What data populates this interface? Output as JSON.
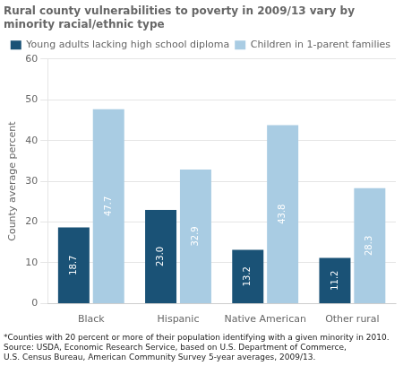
{
  "chart_data": {
    "type": "bar",
    "title": "Rural county vulnerabilities to poverty in 2009/13 vary by minority racial/ethnic type",
    "ylabel": "County average percent",
    "categories": [
      "Black",
      "Hispanic",
      "Native American",
      "Other rural"
    ],
    "series": [
      {
        "name": "Young adults lacking high school diploma",
        "color": "#1a5276",
        "values": [
          18.7,
          23.0,
          13.2,
          11.2
        ],
        "value_labels": [
          "18.7",
          "23.0",
          "13.2",
          "11.2"
        ]
      },
      {
        "name": "Children in 1-parent families",
        "color": "#a9cce3",
        "values": [
          47.7,
          32.9,
          43.8,
          28.3
        ],
        "value_labels": [
          "47.7",
          "32.9",
          "43.8",
          "28.3"
        ]
      }
    ],
    "ylim": [
      0,
      60
    ],
    "yticks": [
      0,
      10,
      20,
      30,
      40,
      50,
      60
    ],
    "grid": true,
    "legend": "upper right",
    "data_labels": true,
    "annotations": [
      "*Counties with 20 percent or more of their population identifying with a given minority in 2010.\nSource: USDA, Economic Research Service, based on U.S. Department of Commerce,\nU.S. Census Bureau, American Community Survey 5-year averages, 2009/13."
    ]
  }
}
